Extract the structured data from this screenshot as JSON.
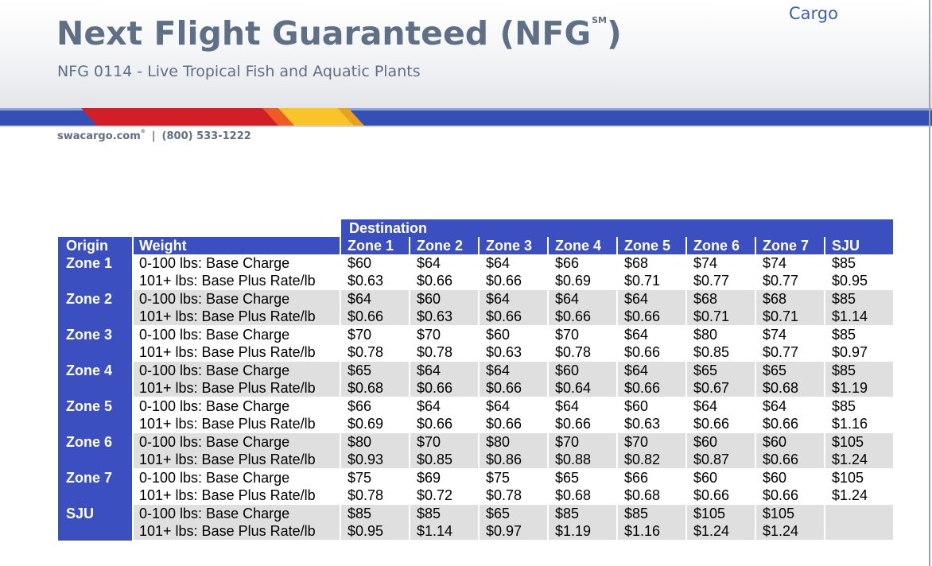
{
  "header": {
    "brand": "Cargo",
    "title": "Next Flight Guaranteed (NFG",
    "title_sup": "SM",
    "title_close": ")",
    "subtitle": "NFG 0114 - Live Tropical Fish and Aquatic Plants"
  },
  "contact": {
    "website": "swacargo.com",
    "website_mark": "®",
    "separator": "|",
    "phone": "(800) 533-1222"
  },
  "colors": {
    "header_blue": "#3b4fc1",
    "stripe_blue": "#3550b5",
    "red": "#d21f27",
    "yellow": "#f8c42a",
    "title_gray": "#5e6f86",
    "row_shade": "#dfdfdf"
  },
  "table": {
    "destination_label": "Destination",
    "origin_header": "Origin",
    "weight_header": "Weight",
    "destinations": [
      "Zone 1",
      "Zone 2",
      "Zone 3",
      "Zone 4",
      "Zone 5",
      "Zone 6",
      "Zone 7",
      "SJU"
    ],
    "weight_labels": [
      "0-100 lbs: Base Charge",
      "101+ lbs: Base Plus Rate/lb"
    ],
    "rows": [
      {
        "origin": "Zone 1",
        "base": [
          "$60",
          "$64",
          "$64",
          "$66",
          "$68",
          "$74",
          "$74",
          "$85"
        ],
        "rate": [
          "$0.63",
          "$0.66",
          "$0.66",
          "$0.69",
          "$0.71",
          "$0.77",
          "$0.77",
          "$0.95"
        ]
      },
      {
        "origin": "Zone 2",
        "base": [
          "$64",
          "$60",
          "$64",
          "$64",
          "$64",
          "$68",
          "$68",
          "$85"
        ],
        "rate": [
          "$0.66",
          "$0.63",
          "$0.66",
          "$0.66",
          "$0.66",
          "$0.71",
          "$0.71",
          "$1.14"
        ]
      },
      {
        "origin": "Zone 3",
        "base": [
          "$70",
          "$70",
          "$60",
          "$70",
          "$64",
          "$80",
          "$74",
          "$85"
        ],
        "rate": [
          "$0.78",
          "$0.78",
          "$0.63",
          "$0.78",
          "$0.66",
          "$0.85",
          "$0.77",
          "$0.97"
        ]
      },
      {
        "origin": "Zone 4",
        "base": [
          "$65",
          "$64",
          "$64",
          "$60",
          "$64",
          "$65",
          "$65",
          "$85"
        ],
        "rate": [
          "$0.68",
          "$0.66",
          "$0.66",
          "$0.64",
          "$0.66",
          "$0.67",
          "$0.68",
          "$1.19"
        ]
      },
      {
        "origin": "Zone 5",
        "base": [
          "$66",
          "$64",
          "$64",
          "$64",
          "$60",
          "$64",
          "$64",
          "$85"
        ],
        "rate": [
          "$0.69",
          "$0.66",
          "$0.66",
          "$0.66",
          "$0.63",
          "$0.66",
          "$0.66",
          "$1.16"
        ]
      },
      {
        "origin": "Zone 6",
        "base": [
          "$80",
          "$70",
          "$80",
          "$70",
          "$70",
          "$60",
          "$60",
          "$105"
        ],
        "rate": [
          "$0.93",
          "$0.85",
          "$0.86",
          "$0.88",
          "$0.82",
          "$0.87",
          "$0.66",
          "$1.24"
        ]
      },
      {
        "origin": "Zone 7",
        "base": [
          "$75",
          "$69",
          "$75",
          "$65",
          "$66",
          "$60",
          "$60",
          "$105"
        ],
        "rate": [
          "$0.78",
          "$0.72",
          "$0.78",
          "$0.68",
          "$0.68",
          "$0.66",
          "$0.66",
          "$1.24"
        ]
      },
      {
        "origin": "SJU",
        "base": [
          "$85",
          "$85",
          "$65",
          "$85",
          "$85",
          "$105",
          "$105",
          ""
        ],
        "rate": [
          "$0.95",
          "$1.14",
          "$0.97",
          "$1.19",
          "$1.16",
          "$1.24",
          "$1.24",
          ""
        ]
      }
    ]
  }
}
